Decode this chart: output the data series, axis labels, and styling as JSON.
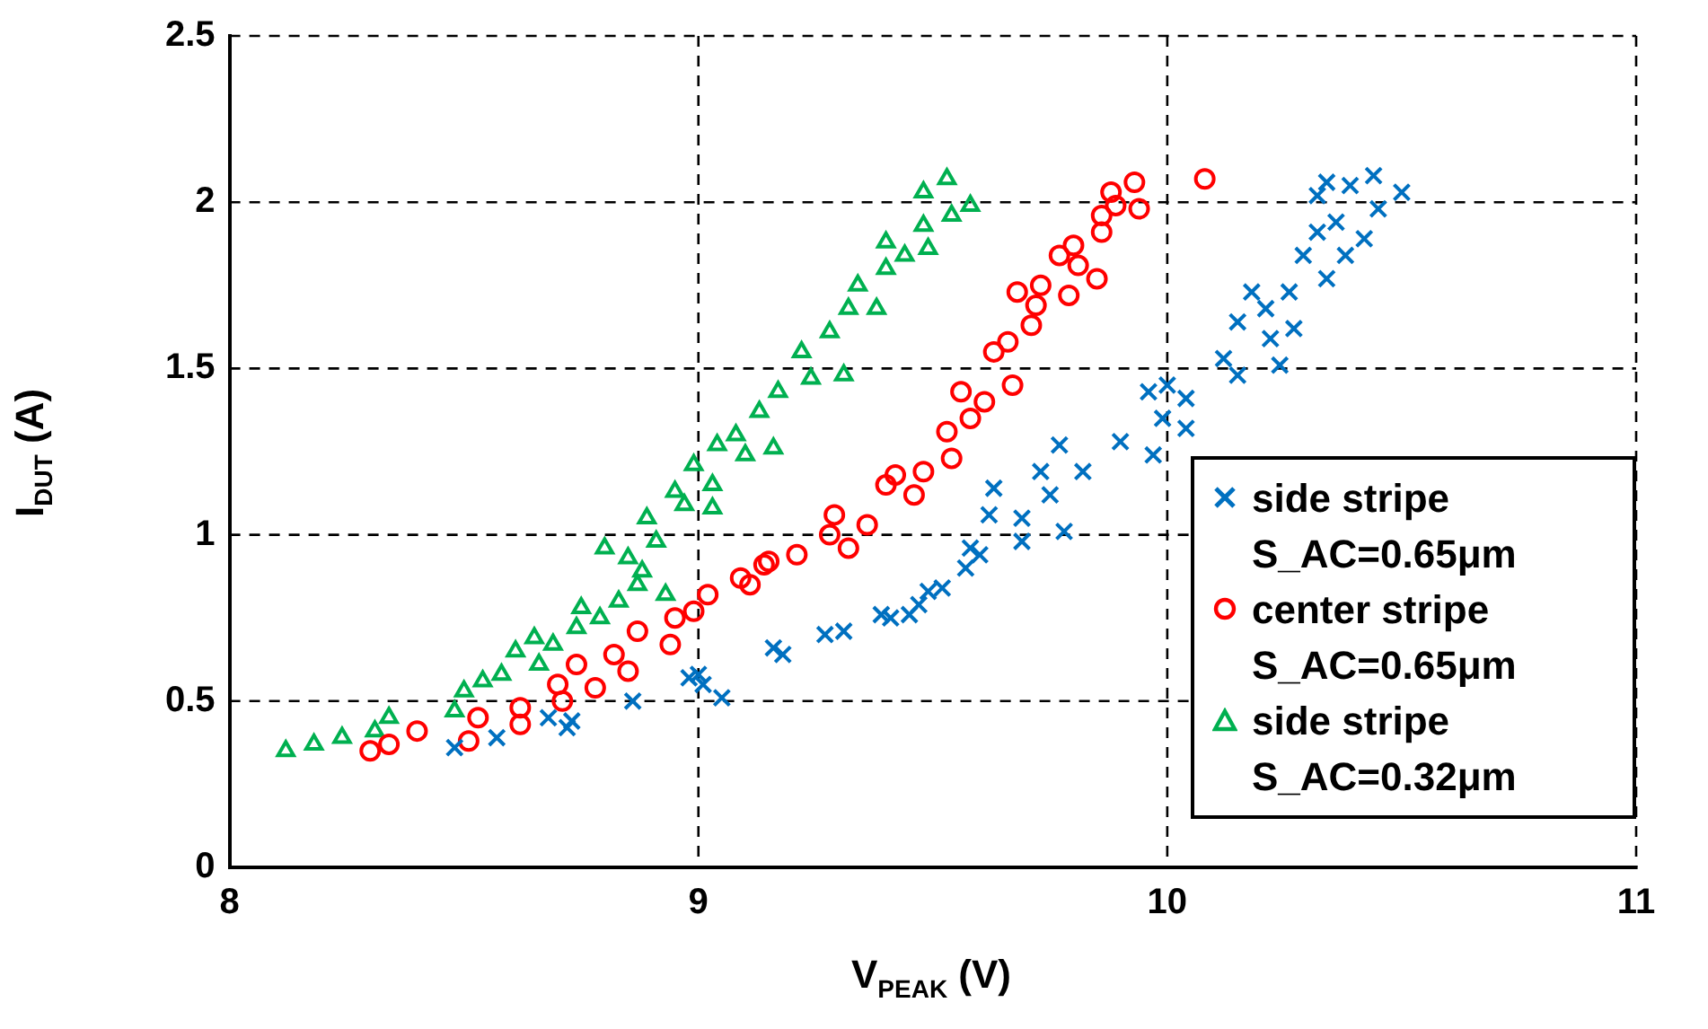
{
  "chart_data": {
    "type": "scatter",
    "xlabel": "V$_{PEAK}$ (V)",
    "ylabel": "I$_{DUT}$ (A)",
    "xlim": [
      8,
      11
    ],
    "xticks": [
      8,
      9,
      10,
      11
    ],
    "ylim": [
      0,
      2.5
    ],
    "yticks": [
      0,
      0.5,
      1,
      1.5,
      2,
      2.5
    ],
    "grid": true,
    "legend": "bottom right",
    "series": [
      {
        "name": "side stripe S_AC=0.65μm",
        "color": "#0070c0",
        "marker": "cross",
        "x": [
          8.48,
          8.57,
          8.68,
          8.72,
          8.73,
          8.86,
          8.98,
          9.0,
          9.01,
          9.05,
          9.16,
          9.18,
          9.27,
          9.31,
          9.39,
          9.41,
          9.45,
          9.47,
          9.49,
          9.52,
          9.57,
          9.6,
          9.63,
          9.62,
          9.58,
          9.69,
          9.69,
          9.73,
          9.75,
          9.77,
          9.78,
          9.82,
          9.9,
          9.96,
          9.97,
          9.99,
          10.0,
          10.04,
          10.04,
          10.12,
          10.15,
          10.18,
          10.15,
          10.21,
          10.22,
          10.24,
          10.27,
          10.26,
          10.29,
          10.32,
          10.34,
          10.38,
          10.36,
          10.42,
          10.34,
          10.39,
          10.44,
          10.45,
          10.5,
          10.32
        ],
        "values": [
          0.36,
          0.39,
          0.45,
          0.42,
          0.44,
          0.5,
          0.57,
          0.58,
          0.55,
          0.51,
          0.66,
          0.64,
          0.7,
          0.71,
          0.76,
          0.75,
          0.76,
          0.79,
          0.83,
          0.84,
          0.9,
          0.94,
          1.14,
          1.06,
          0.96,
          1.05,
          0.98,
          1.19,
          1.12,
          1.27,
          1.01,
          1.19,
          1.28,
          1.43,
          1.24,
          1.35,
          1.45,
          1.41,
          1.32,
          1.53,
          1.48,
          1.73,
          1.64,
          1.68,
          1.59,
          1.51,
          1.62,
          1.73,
          1.84,
          1.91,
          1.77,
          1.84,
          1.94,
          1.89,
          2.06,
          2.05,
          2.08,
          1.98,
          2.03,
          2.02
        ]
      },
      {
        "name": "center stripe S_AC=0.65μm",
        "color": "#ff0000",
        "marker": "circle",
        "x": [
          8.3,
          8.34,
          8.4,
          8.51,
          8.53,
          8.62,
          8.62,
          8.7,
          8.74,
          8.71,
          8.78,
          8.82,
          8.85,
          8.87,
          8.94,
          8.95,
          8.99,
          9.02,
          9.09,
          9.11,
          9.14,
          9.15,
          9.21,
          9.28,
          9.32,
          9.29,
          9.36,
          9.4,
          9.42,
          9.46,
          9.48,
          9.53,
          9.54,
          9.56,
          9.58,
          9.61,
          9.63,
          9.66,
          9.67,
          9.68,
          9.71,
          9.72,
          9.73,
          9.77,
          9.79,
          9.8,
          9.81,
          9.85,
          9.86,
          9.86,
          9.89,
          9.88,
          9.93,
          9.94,
          10.08
        ],
        "values": [
          0.35,
          0.37,
          0.41,
          0.38,
          0.45,
          0.43,
          0.48,
          0.55,
          0.61,
          0.5,
          0.54,
          0.64,
          0.59,
          0.71,
          0.67,
          0.75,
          0.77,
          0.82,
          0.87,
          0.85,
          0.91,
          0.92,
          0.94,
          1.0,
          0.96,
          1.06,
          1.03,
          1.15,
          1.18,
          1.12,
          1.19,
          1.31,
          1.23,
          1.43,
          1.35,
          1.4,
          1.55,
          1.58,
          1.45,
          1.73,
          1.63,
          1.69,
          1.75,
          1.84,
          1.72,
          1.87,
          1.81,
          1.77,
          1.91,
          1.96,
          1.99,
          2.03,
          2.06,
          1.98,
          2.07
        ]
      },
      {
        "name": "side stripe S_AC=0.32μm",
        "color": "#00b050",
        "marker": "triangle",
        "x": [
          8.12,
          8.18,
          8.24,
          8.31,
          8.34,
          8.48,
          8.5,
          8.54,
          8.58,
          8.61,
          8.65,
          8.66,
          8.69,
          8.74,
          8.75,
          8.79,
          8.8,
          8.83,
          8.85,
          8.87,
          8.88,
          8.91,
          8.89,
          8.93,
          8.95,
          8.97,
          8.99,
          9.03,
          9.03,
          9.04,
          9.08,
          9.1,
          9.13,
          9.16,
          9.17,
          9.22,
          9.24,
          9.28,
          9.31,
          9.32,
          9.34,
          9.38,
          9.4,
          9.44,
          9.4,
          9.48,
          9.49,
          9.48,
          9.53,
          9.54,
          9.58
        ],
        "values": [
          0.35,
          0.37,
          0.39,
          0.41,
          0.45,
          0.47,
          0.53,
          0.56,
          0.58,
          0.65,
          0.69,
          0.61,
          0.67,
          0.72,
          0.78,
          0.75,
          0.96,
          0.8,
          0.93,
          0.85,
          0.89,
          0.98,
          1.05,
          0.82,
          1.13,
          1.09,
          1.21,
          1.08,
          1.15,
          1.27,
          1.3,
          1.24,
          1.37,
          1.26,
          1.43,
          1.55,
          1.47,
          1.61,
          1.48,
          1.68,
          1.75,
          1.68,
          1.8,
          1.84,
          1.88,
          1.93,
          1.86,
          2.03,
          2.07,
          1.96,
          1.99
        ]
      }
    ]
  }
}
